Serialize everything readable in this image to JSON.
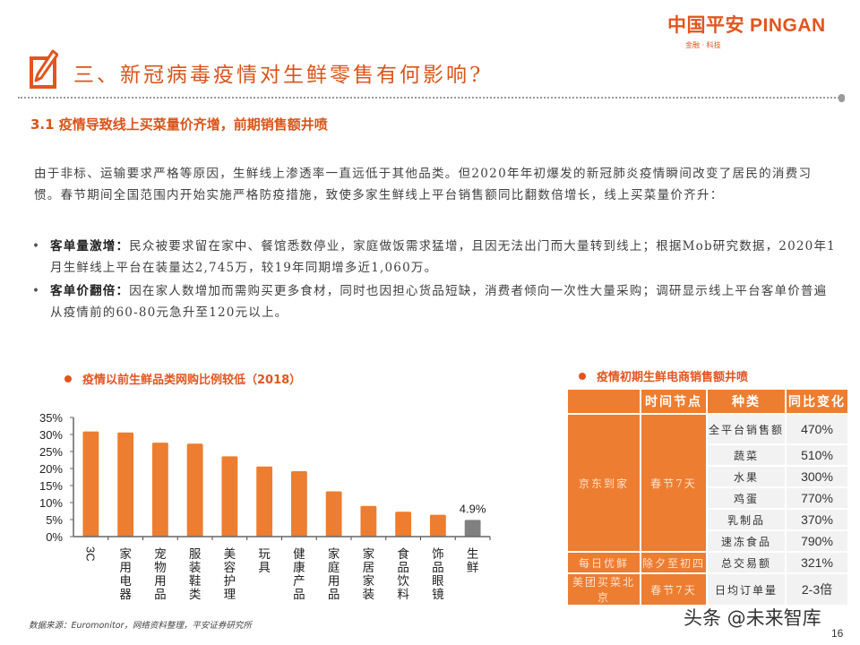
{
  "brand": {
    "logo_cn": "中国平安",
    "logo_en": "PINGAN",
    "tagline": "金融 · 科技",
    "accent_color": "#e2551f",
    "bar_color": "#ed7d31",
    "highlight_bar_color": "#808080"
  },
  "header": {
    "section_title": "三、新冠病毒疫情对生鲜零售有何影响?",
    "icon": "pencil-square-icon"
  },
  "subtitle": "3.1 疫情导致线上买菜量价齐增，前期销售额井喷",
  "intro": "由于非标、运输要求严格等原因，生鲜线上渗透率一直远低于其他品类。但2020年年初爆发的新冠肺炎疫情瞬间改变了居民的消费习惯。春节期间全国范围内开始实施严格防疫措施，致使多家生鲜线上平台销售额同比翻数倍增长，线上买菜量价齐升：",
  "bullets": [
    {
      "label": "客单量激增：",
      "text": "民众被要求留在家中、餐馆悉数停业，家庭做饭需求猛增，且因无法出门而大量转到线上；根据Mob研究数据，2020年1月生鲜线上平台在装量达2,745万，较19年同期增多近1,060万。"
    },
    {
      "label": "客单价翻倍：",
      "text": "因在家人数增加而需购买更多食材，同时也因担心货品短缺，消费者倾向一次性大量采购；调研显示线上平台客单价普遍从疫情前的60-80元急升至120元以上。"
    }
  ],
  "chart_data": {
    "type": "bar",
    "title": "疫情以前生鲜品类网购比例较低（2018）",
    "xlabel": "",
    "ylabel": "",
    "ylim": [
      0,
      35
    ],
    "yticks": [
      "0%",
      "5%",
      "10%",
      "15%",
      "20%",
      "25%",
      "30%",
      "35%"
    ],
    "grid": false,
    "legend": "none",
    "categories": [
      "3C",
      "家用电器",
      "宠物用品",
      "服装鞋类",
      "美容护理",
      "玩具",
      "健康产品",
      "家庭用品",
      "家居家装",
      "食品饮料",
      "饰品眼镜",
      "生鲜"
    ],
    "values": [
      30.9,
      30.6,
      27.6,
      27.3,
      23.6,
      20.6,
      19.2,
      13.3,
      9.0,
      7.3,
      6.4,
      4.9
    ],
    "annotations": [
      {
        "category": "生鲜",
        "label": "4.9%"
      }
    ],
    "highlight": "生鲜"
  },
  "table": {
    "title": "疫情初期生鲜电商销售额井喷",
    "headers": [
      "",
      "时间节点",
      "种类",
      "同比变化"
    ],
    "groups": [
      {
        "platform": "京东到家",
        "period": "春节7天",
        "rows": [
          {
            "category": "全平台销售额",
            "change": "470%"
          },
          {
            "category": "蔬菜",
            "change": "510%"
          },
          {
            "category": "水果",
            "change": "300%"
          },
          {
            "category": "鸡蛋",
            "change": "770%"
          },
          {
            "category": "乳制品",
            "change": "370%"
          },
          {
            "category": "速冻食品",
            "change": "790%"
          }
        ]
      },
      {
        "platform": "每日优鲜",
        "period": "除夕至初四",
        "rows": [
          {
            "category": "总交易额",
            "change": "321%"
          }
        ]
      },
      {
        "platform": "美团买菜北京",
        "period": "春节7天",
        "rows": [
          {
            "category": "日均订单量",
            "change": "2-3倍"
          }
        ]
      }
    ]
  },
  "footer": {
    "source": "数据来源：Euromonitor，网络资料整理，平安证券研究所",
    "watermark": "头条 @未来智库",
    "page_number": "16"
  }
}
